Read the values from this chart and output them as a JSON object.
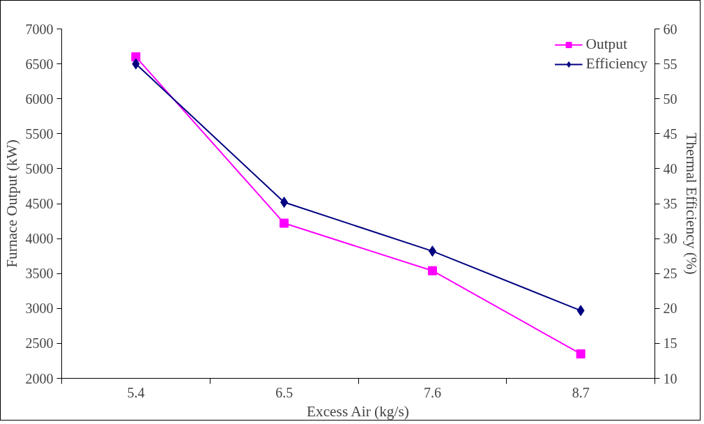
{
  "chart_data": {
    "type": "line",
    "xlabel": "Excess Air (kg/s)",
    "ylabel": "Furnace Output (kW)",
    "y2label": "Thermal Efficiency (%)",
    "categories": [
      "5.4",
      "6.5",
      "7.6",
      "8.7"
    ],
    "series": [
      {
        "name": "Output",
        "color": "#ff00ff",
        "marker": "square",
        "values": [
          6600,
          4220,
          3540,
          2350
        ]
      },
      {
        "name": "Efficiency",
        "color": "#000080",
        "marker": "diamond",
        "axis": "y2",
        "values": [
          55,
          35.2,
          28.2,
          19.7
        ]
      }
    ],
    "ylim": [
      2000,
      7000
    ],
    "yticks": [
      2000,
      2500,
      3000,
      3500,
      4000,
      4500,
      5000,
      5500,
      6000,
      6500,
      7000
    ],
    "y2lim": [
      10,
      60
    ],
    "y2ticks": [
      10,
      15,
      20,
      25,
      30,
      35,
      40,
      45,
      50,
      55,
      60
    ],
    "grid": false,
    "legend": "top right"
  }
}
